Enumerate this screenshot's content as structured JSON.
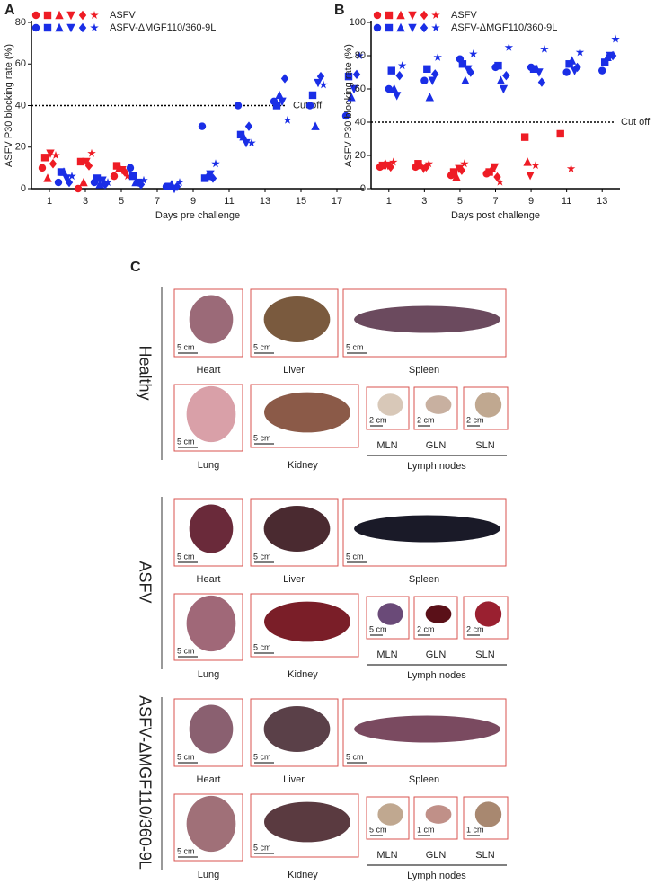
{
  "chart_data": [
    {
      "type": "scatter",
      "panel": "A",
      "y_label": "ASFV P30 blocking rate (%)",
      "x_label": "Days pre challenge",
      "xlim": [
        0,
        18.5
      ],
      "xticks": [
        1,
        3,
        5,
        7,
        9,
        11,
        13,
        15,
        17
      ],
      "ylim": [
        0,
        80
      ],
      "yticks": [
        0,
        20,
        40,
        60,
        80
      ],
      "cutoff": {
        "value": 40,
        "label": "Cut off"
      },
      "groups": [
        {
          "name": "ASFV",
          "color": "#ee1c25",
          "series": [
            {
              "marker": "circle",
              "x": [
                0.6,
                2.6,
                4.6
              ],
              "values": [
                10,
                0,
                6
              ]
            },
            {
              "marker": "square",
              "x": [
                0.75,
                2.75,
                4.75
              ],
              "values": [
                15,
                13,
                11
              ]
            },
            {
              "marker": "triangle-up",
              "x": [
                0.9,
                2.9,
                4.9
              ],
              "values": [
                5,
                3,
                10
              ]
            },
            {
              "marker": "triangle-down",
              "x": [
                1.05,
                3.05,
                5.05
              ],
              "values": [
                17,
                13,
                9
              ]
            },
            {
              "marker": "diamond",
              "x": [
                1.2,
                3.2,
                5.2
              ],
              "values": [
                12,
                11,
                8
              ]
            },
            {
              "marker": "star",
              "x": [
                1.35,
                3.35,
                5.35
              ],
              "values": [
                16,
                17,
                6
              ]
            }
          ]
        },
        {
          "name": "ASFV-ΔMGF110/360-9L",
          "color": "#1a2ee6",
          "series": [
            {
              "marker": "circle",
              "x": [
                1.5,
                3.5,
                5.5,
                7.5,
                9.5,
                11.5,
                13.5,
                15.5,
                17.5
              ],
              "values": [
                3,
                3,
                10,
                1,
                30,
                40,
                42,
                40,
                35
              ]
            },
            {
              "marker": "square",
              "x": [
                1.65,
                3.65,
                5.65,
                7.65,
                9.65,
                11.65,
                13.65,
                15.65,
                17.65
              ],
              "values": [
                8,
                5,
                6,
                1,
                5,
                26,
                40,
                45,
                54
              ]
            },
            {
              "marker": "triangle-up",
              "x": [
                1.8,
                3.8,
                5.8,
                7.8,
                9.8,
                11.8,
                13.8,
                15.8,
                17.8
              ],
              "values": [
                8,
                2,
                3,
                2,
                6,
                25,
                45,
                30,
                44
              ]
            },
            {
              "marker": "triangle-down",
              "x": [
                1.95,
                3.95,
                5.95,
                7.95,
                9.95,
                11.95,
                13.95,
                15.95,
                17.95
              ],
              "values": [
                5,
                4,
                3,
                0,
                7,
                22,
                42,
                51,
                48
              ]
            },
            {
              "marker": "diamond",
              "x": [
                2.1,
                4.1,
                6.1,
                8.1,
                10.1,
                12.1,
                14.1,
                16.1,
                18.1
              ],
              "values": [
                3,
                2,
                2,
                1,
                5,
                30,
                53,
                54,
                55
              ]
            },
            {
              "marker": "star",
              "x": [
                2.25,
                4.25,
                6.25,
                8.25,
                10.25,
                12.25,
                14.25,
                16.25,
                18.25
              ],
              "values": [
                6,
                3,
                4,
                3,
                12,
                22,
                33,
                50,
                64
              ]
            }
          ]
        }
      ]
    },
    {
      "type": "scatter",
      "panel": "B",
      "y_label": "ASFV P30 blocking rate (%)",
      "x_label": "Days post challenge",
      "xlim": [
        0,
        14
      ],
      "xticks": [
        1,
        3,
        5,
        7,
        9,
        11,
        13
      ],
      "ylim": [
        0,
        100
      ],
      "yticks": [
        0,
        20,
        40,
        60,
        80,
        100
      ],
      "cutoff": {
        "value": 40,
        "label": "Cut off"
      },
      "groups": [
        {
          "name": "ASFV",
          "color": "#ee1c25",
          "series": [
            {
              "marker": "circle",
              "x": [
                0.5,
                2.5,
                4.5,
                6.5,
                8.5,
                10.5
              ],
              "values": [
                13,
                13,
                8,
                9,
                null,
                null
              ]
            },
            {
              "marker": "square",
              "x": [
                0.65,
                2.65,
                4.65,
                6.65,
                8.65,
                10.65
              ],
              "values": [
                14,
                15,
                10,
                10,
                31,
                33
              ]
            },
            {
              "marker": "triangle-up",
              "x": [
                0.8,
                2.8,
                4.8,
                6.8,
                8.8,
                10.8
              ],
              "values": [
                15,
                14,
                7,
                12,
                16,
                null
              ]
            },
            {
              "marker": "triangle-down",
              "x": [
                0.95,
                2.95,
                4.95,
                6.95,
                8.95,
                10.95
              ],
              "values": [
                14,
                12,
                12,
                13,
                8,
                null
              ]
            },
            {
              "marker": "diamond",
              "x": [
                1.1,
                3.1,
                5.1,
                7.1,
                9.1,
                11.1
              ],
              "values": [
                13,
                13,
                11,
                7,
                null,
                null
              ]
            },
            {
              "marker": "star",
              "x": [
                1.25,
                3.25,
                5.25,
                7.25,
                9.25,
                11.25
              ],
              "values": [
                16,
                15,
                15,
                4,
                14,
                12
              ]
            }
          ]
        },
        {
          "name": "ASFV-ΔMGF110/360-9L",
          "color": "#1a2ee6",
          "series": [
            {
              "marker": "circle",
              "x": [
                1.0,
                3.0,
                5.0,
                7.0,
                9.0,
                11.0,
                13.0
              ],
              "values": [
                60,
                65,
                78,
                73,
                73,
                70,
                71
              ]
            },
            {
              "marker": "square",
              "x": [
                1.15,
                3.15,
                5.15,
                7.15,
                9.15,
                11.15,
                13.15
              ],
              "values": [
                71,
                72,
                75,
                74,
                72,
                75,
                76
              ]
            },
            {
              "marker": "triangle-up",
              "x": [
                1.3,
                3.3,
                5.3,
                7.3,
                9.3,
                11.3,
                13.3
              ],
              "values": [
                60,
                55,
                65,
                65,
                72,
                77,
                79
              ]
            },
            {
              "marker": "triangle-down",
              "x": [
                1.45,
                3.45,
                5.45,
                7.45,
                9.45,
                11.45,
                13.45
              ],
              "values": [
                56,
                65,
                72,
                60,
                70,
                71,
                80
              ]
            },
            {
              "marker": "diamond",
              "x": [
                1.6,
                3.6,
                5.6,
                7.6,
                9.6,
                11.6,
                13.6
              ],
              "values": [
                68,
                69,
                70,
                68,
                64,
                73,
                80
              ]
            },
            {
              "marker": "star",
              "x": [
                1.75,
                3.75,
                5.75,
                7.75,
                9.75,
                11.75,
                13.75
              ],
              "values": [
                74,
                79,
                81,
                85,
                84,
                82,
                90
              ]
            }
          ]
        }
      ]
    }
  ],
  "panel_c": {
    "label": "C",
    "groups": [
      {
        "name": "Healthy",
        "lymph_nodes_label": "Lymph nodes",
        "organs": [
          {
            "name": "Heart",
            "scale": "5 cm"
          },
          {
            "name": "Liver",
            "scale": "5 cm"
          },
          {
            "name": "Spleen",
            "scale": "5 cm"
          },
          {
            "name": "Lung",
            "scale": "5 cm"
          },
          {
            "name": "Kidney",
            "scale": "5 cm"
          },
          {
            "name": "MLN",
            "scale": "2 cm"
          },
          {
            "name": "GLN",
            "scale": "2 cm"
          },
          {
            "name": "SLN",
            "scale": "2 cm"
          }
        ]
      },
      {
        "name": "ASFV",
        "lymph_nodes_label": "Lymph nodes",
        "organs": [
          {
            "name": "Heart",
            "scale": "5 cm"
          },
          {
            "name": "Liver",
            "scale": "5 cm"
          },
          {
            "name": "Spleen",
            "scale": "5 cm"
          },
          {
            "name": "Lung",
            "scale": "5 cm"
          },
          {
            "name": "Kidney",
            "scale": "5 cm"
          },
          {
            "name": "MLN",
            "scale": "5 cm"
          },
          {
            "name": "GLN",
            "scale": "2 cm"
          },
          {
            "name": "SLN",
            "scale": "2 cm"
          }
        ]
      },
      {
        "name": "ASFV-ΔMGF110/360-9L",
        "lymph_nodes_label": "Lymph nodes",
        "organs": [
          {
            "name": "Heart",
            "scale": "5 cm"
          },
          {
            "name": "Liver",
            "scale": "5 cm"
          },
          {
            "name": "Spleen",
            "scale": "5 cm"
          },
          {
            "name": "Lung",
            "scale": "5 cm"
          },
          {
            "name": "Kidney",
            "scale": "5 cm"
          },
          {
            "name": "MLN",
            "scale": "5 cm"
          },
          {
            "name": "GLN",
            "scale": "1 cm"
          },
          {
            "name": "SLN",
            "scale": "1 cm"
          }
        ]
      }
    ]
  }
}
